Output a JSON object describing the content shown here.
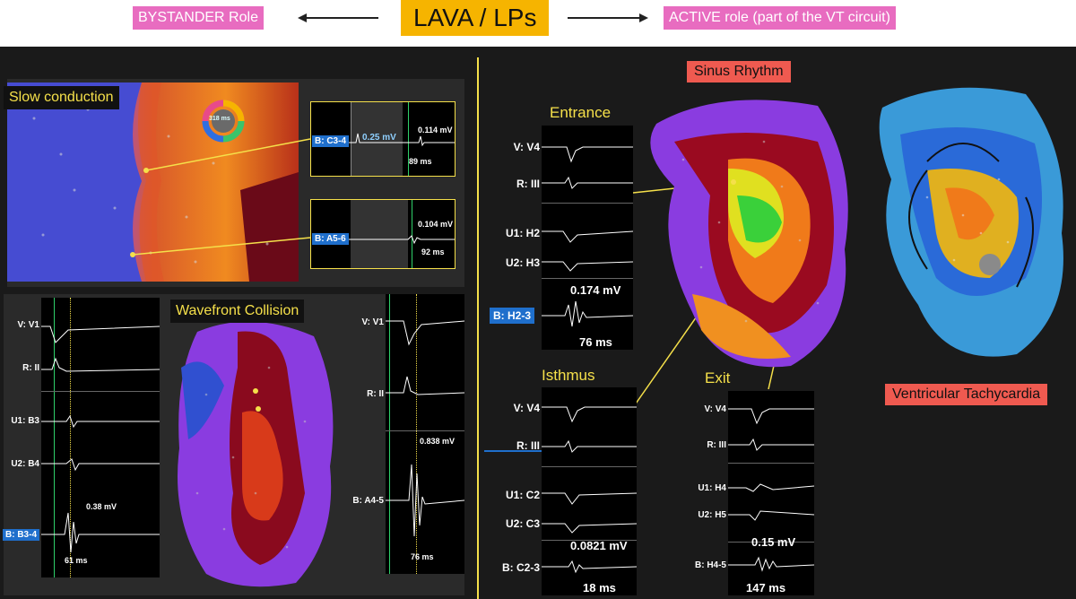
{
  "header": {
    "left_label": "BYSTANDER Role",
    "center_title": "LAVA / LPs",
    "right_label": "ACTIVE role  (part of the VT circuit)"
  },
  "left": {
    "slow": {
      "title": "Slow conduction",
      "dial_value": "318 ms",
      "egm_top": {
        "label": "B: C3-4",
        "amp_left": "0.25 mV",
        "amp_right": "0.114 mV",
        "time": "89 ms"
      },
      "egm_bottom": {
        "label": "B: A5-6",
        "amp_right": "0.104 mV",
        "time": "92 ms"
      }
    },
    "collision": {
      "title": "Wavefront Collision",
      "left_egm": {
        "v": "V: V1",
        "r": "R: II",
        "u1": "U1: B3",
        "u2": "U2: B4",
        "b": "B: B3-4",
        "amp": "0.38 mV",
        "time": "61 ms"
      },
      "right_egm": {
        "v": "V: V1",
        "r": "R: II",
        "b": "B: A4-5",
        "amp": "0.838 mV",
        "time": "76 ms"
      }
    }
  },
  "right": {
    "sinus_title": "Sinus Rhythm",
    "vt_title": "Ventricular Tachycardia",
    "entrance": {
      "title": "Entrance",
      "v": "V: V4",
      "r": "R: III",
      "u1": "U1: H2",
      "u2": "U2: H3",
      "b": "B: H2-3",
      "amp": "0.174 mV",
      "time": "76 ms"
    },
    "isthmus": {
      "title": "Isthmus",
      "v": "V: V4",
      "r": "R: III",
      "u1": "U1: C2",
      "u2": "U2: C3",
      "b": "B: C2-3",
      "amp": "0.0821 mV",
      "time": "18 ms"
    },
    "exit": {
      "title": "Exit",
      "v": "V: V4",
      "r": "R: III",
      "u1": "U1: H4",
      "u2": "U2: H5",
      "b": "B: H4-5",
      "amp": "0.15 mV",
      "time": "147 ms"
    }
  },
  "colors": {
    "pink": "#e86cc0",
    "gold": "#f6b400",
    "yellow": "#f5e04a",
    "coral": "#ef5a50",
    "tag_blue": "#1f6fcc"
  }
}
